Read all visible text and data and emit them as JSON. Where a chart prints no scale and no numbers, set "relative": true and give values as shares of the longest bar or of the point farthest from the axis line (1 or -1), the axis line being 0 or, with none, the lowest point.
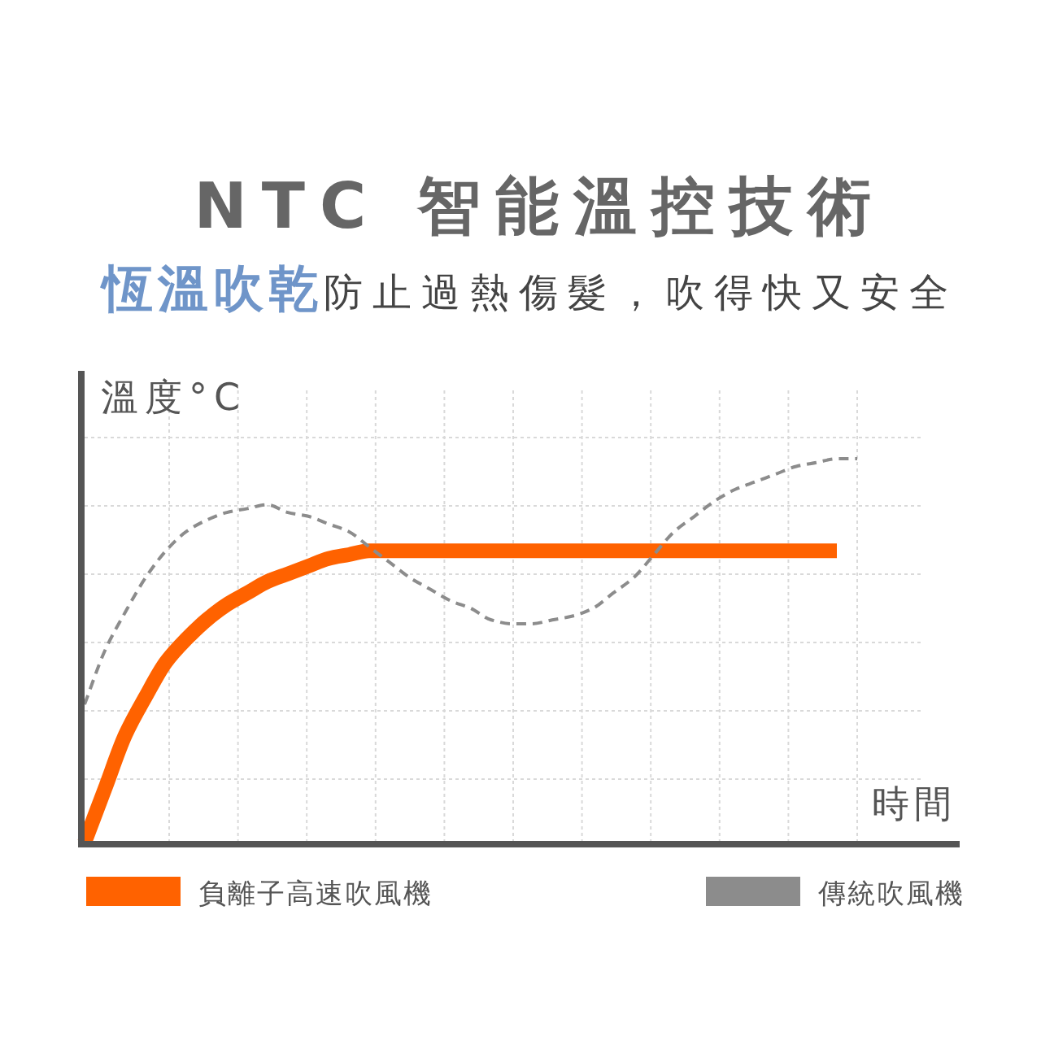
{
  "chart_data": {
    "type": "line",
    "relative": true,
    "title": "NTC 智能溫控技術",
    "subtitle": "**恆溫吹乾**防止過熱傷髮，吹得快又安全",
    "xlabel": "時間",
    "ylabel": "溫度°C",
    "categories": [
      null,
      null,
      null,
      null,
      null,
      null,
      null,
      null,
      null,
      null,
      null,
      null,
      null,
      null,
      null,
      null,
      null,
      null,
      null,
      null,
      null,
      null,
      null,
      null,
      null,
      null,
      null,
      null,
      null,
      null,
      null,
      null,
      null,
      null,
      null,
      null,
      null,
      null,
      null
    ],
    "series": [
      {
        "name": "負離子高速吹風機",
        "color": "#ff6200",
        "line_style": "solid",
        "values": [
          0,
          0.14,
          0.28,
          0.38,
          0.47,
          0.53,
          0.58,
          0.62,
          0.65,
          0.68,
          0.7,
          0.72,
          0.74,
          0.75,
          0.76,
          0.76,
          0.76,
          0.76,
          0.76,
          0.76,
          0.76,
          0.76,
          0.76,
          0.76,
          0.76,
          0.76,
          0.76,
          0.76,
          0.76,
          0.76,
          0.76,
          0.76,
          0.76,
          0.76,
          0.76,
          0.76,
          0.76,
          0.76,
          null
        ]
      },
      {
        "name": "傳統吹風機",
        "color": "#8c8c8c",
        "line_style": "dashed",
        "values": [
          0.36,
          0.5,
          0.6,
          0.69,
          0.76,
          0.81,
          0.84,
          0.86,
          0.87,
          0.88,
          0.86,
          0.85,
          0.83,
          0.81,
          0.77,
          0.73,
          0.69,
          0.66,
          0.63,
          0.61,
          0.58,
          0.57,
          0.57,
          0.58,
          0.59,
          0.61,
          0.65,
          0.69,
          0.75,
          0.81,
          0.85,
          0.89,
          0.92,
          0.94,
          0.96,
          0.98,
          0.99,
          1.0,
          1.0
        ]
      }
    ],
    "grid": true,
    "legend": "bottom"
  }
}
